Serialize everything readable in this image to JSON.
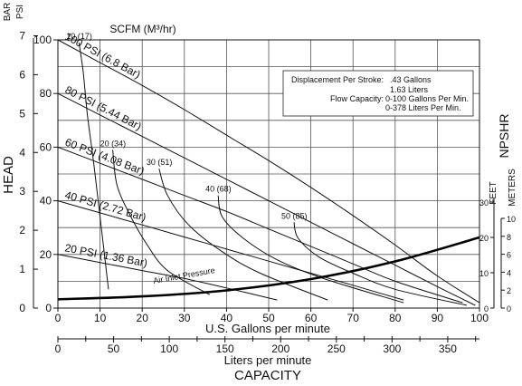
{
  "chart_data": {
    "type": "line",
    "title": "",
    "x_axis": {
      "label": "U.S. Gallons per minute",
      "range": [
        0,
        100
      ],
      "ticks": [
        0,
        10,
        20,
        30,
        40,
        50,
        60,
        70,
        80,
        90,
        100
      ]
    },
    "x2_axis": {
      "label": "Liters per minute",
      "range": [
        0,
        378.5
      ],
      "ticks": [
        0,
        50,
        100,
        150,
        200,
        250,
        300,
        350
      ]
    },
    "bottom_title": "CAPACITY",
    "y_axis": {
      "label": "HEAD",
      "unit_psi": "PSI",
      "unit_bar": "BAR",
      "range_psi": [
        0,
        100
      ],
      "ticks_psi": [
        0,
        20,
        40,
        60,
        80,
        100
      ],
      "tick_labels_psi": [
        "0",
        "20",
        "40",
        "60",
        "80",
        "100"
      ],
      "ticks_bar": [
        "0",
        "1",
        "2",
        "3",
        "4",
        "5",
        "6",
        "7"
      ]
    },
    "right_axis": {
      "label": "NPSHR",
      "unit_feet": "FEET",
      "unit_meters": "METERS",
      "ticks_feet": [
        "0",
        "10",
        "20",
        "30"
      ],
      "ticks_meters": [
        "0",
        "2",
        "4",
        "6",
        "8",
        "10"
      ]
    },
    "scfm_title": "SCFM (M³/hr)",
    "pressure_series": [
      {
        "name": "100 PSI (6.8 Bar)",
        "psi": 100,
        "x": [
          0,
          10,
          20,
          30,
          40,
          50,
          60,
          70,
          80,
          90,
          100
        ],
        "y": [
          100,
          91.5,
          83,
          74,
          64.5,
          55,
          45,
          34.5,
          23.5,
          12,
          2
        ]
      },
      {
        "name": "80 PSI (5.44 Bar)",
        "psi": 80,
        "x": [
          0,
          10,
          20,
          30,
          40,
          50,
          60,
          70,
          80,
          90,
          99
        ],
        "y": [
          80,
          72,
          64,
          56,
          48,
          40,
          32,
          24,
          16,
          8,
          1
        ]
      },
      {
        "name": "60 PSI (4.08 Bar)",
        "psi": 60,
        "x": [
          0,
          10,
          20,
          30,
          40,
          50,
          60,
          70,
          80,
          96
        ],
        "y": [
          60,
          54,
          48,
          42,
          36,
          29.5,
          23,
          16.5,
          10,
          2
        ]
      },
      {
        "name": "40 PSI (2.72 Bar)",
        "psi": 40,
        "x": [
          0,
          10,
          20,
          30,
          40,
          50,
          60,
          70,
          82
        ],
        "y": [
          40,
          35.5,
          31,
          26.5,
          22,
          17.5,
          13,
          8.5,
          3
        ]
      },
      {
        "name": "20 PSI (1.36 Bar)",
        "psi": 20,
        "x": [
          0,
          10,
          20,
          30,
          40,
          52
        ],
        "y": [
          20,
          17,
          14,
          11,
          7.5,
          3
        ]
      }
    ],
    "air_consumption_curves": [
      {
        "name": "10 (17)",
        "x": [
          5,
          6,
          7,
          8.5,
          10,
          12
        ],
        "y": [
          99,
          88,
          72,
          54,
          34,
          7
        ]
      },
      {
        "name": "20 (34)",
        "x": [
          13,
          14,
          17,
          21,
          26,
          36
        ],
        "y": [
          59,
          46,
          35,
          24,
          14,
          5
        ]
      },
      {
        "name": "30 (51)",
        "x": [
          24,
          26,
          31,
          39,
          48,
          64
        ],
        "y": [
          52,
          42,
          31,
          21,
          13,
          3
        ]
      },
      {
        "name": "40 (68)",
        "x": [
          38,
          39,
          44,
          52,
          63,
          82
        ],
        "y": [
          42,
          34,
          26,
          18,
          11,
          2
        ]
      },
      {
        "name": "50 (85)",
        "x": [
          56,
          57,
          62,
          70,
          80,
          97
        ],
        "y": [
          32,
          26,
          19,
          13,
          7,
          1
        ]
      }
    ],
    "npshr_curve": {
      "x": [
        0,
        20,
        40,
        60,
        80,
        100
      ],
      "feet": [
        2.5,
        3.3,
        5.0,
        8.2,
        13.2,
        20.0
      ]
    },
    "annotation": "Air Inlet Pressure",
    "legend_box": {
      "lines": [
        {
          "label": "Displacement Per Stroke:",
          "value": ".43 Gallons"
        },
        {
          "label": "",
          "value": "1.63 Liters"
        },
        {
          "label": "Flow Capacity:",
          "value": "0-100 Gallons Per Min."
        },
        {
          "label": "",
          "value": "0-378 Liters Per Min."
        }
      ],
      "placement": "top-right"
    },
    "grid": true
  }
}
